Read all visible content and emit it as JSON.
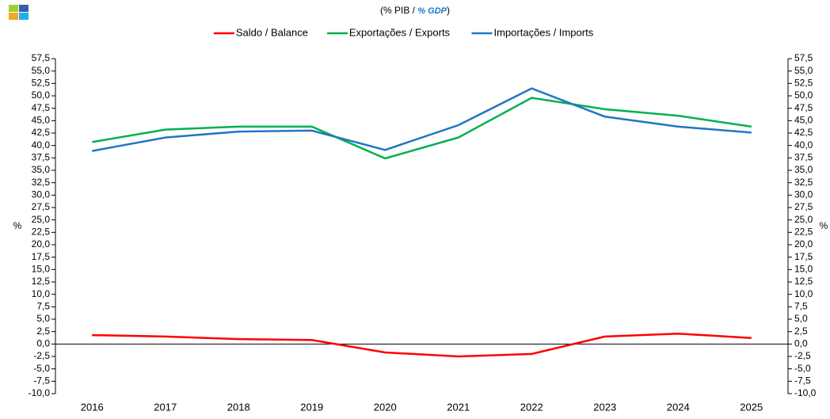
{
  "chart_data": {
    "type": "line",
    "subtitle": [
      "(% PIB / ",
      "% GDP",
      ")"
    ],
    "ylabel": "%",
    "y2label": "%",
    "categories": [
      "2016",
      "2017",
      "2018",
      "2019",
      "2020",
      "2021",
      "2022",
      "2023",
      "2024",
      "2025"
    ],
    "series": [
      {
        "name": "Saldo / Balance",
        "color": "#ff0000",
        "values": [
          1.8,
          1.5,
          1.0,
          0.8,
          -1.7,
          -2.5,
          -2.0,
          1.5,
          2.1,
          1.2
        ]
      },
      {
        "name": "Exportações / Exports",
        "color": "#00b050",
        "values": [
          40.7,
          43.2,
          43.8,
          43.8,
          37.4,
          41.6,
          49.6,
          47.3,
          46.0,
          43.8
        ]
      },
      {
        "name": "Importações / Imports",
        "color": "#1f77c4",
        "values": [
          38.9,
          41.6,
          42.8,
          43.0,
          39.1,
          44.1,
          51.5,
          45.8,
          43.8,
          42.6
        ]
      }
    ],
    "ylim": [
      -10,
      57.5
    ],
    "yticks": [
      {
        "value": -10,
        "label": "-10,0"
      },
      {
        "value": -7.5,
        "label": "-7,5"
      },
      {
        "value": -5,
        "label": "-5,0"
      },
      {
        "value": -2.5,
        "label": "-2,5"
      },
      {
        "value": 0,
        "label": "0,0"
      },
      {
        "value": 2.5,
        "label": "2,5"
      },
      {
        "value": 5,
        "label": "5,0"
      },
      {
        "value": 7.5,
        "label": "7,5"
      },
      {
        "value": 10,
        "label": "10,0"
      },
      {
        "value": 12.5,
        "label": "12,5"
      },
      {
        "value": 15,
        "label": "15,0"
      },
      {
        "value": 17.5,
        "label": "17,5"
      },
      {
        "value": 20,
        "label": "20,0"
      },
      {
        "value": 22.5,
        "label": "22,5"
      },
      {
        "value": 25,
        "label": "25,0"
      },
      {
        "value": 27.5,
        "label": "27,5"
      },
      {
        "value": 30,
        "label": "30,0"
      },
      {
        "value": 32.5,
        "label": "32,5"
      },
      {
        "value": 35,
        "label": "35,0"
      },
      {
        "value": 37.5,
        "label": "37,5"
      },
      {
        "value": 40,
        "label": "40,0"
      },
      {
        "value": 42.5,
        "label": "42,5"
      },
      {
        "value": 45,
        "label": "45,0"
      },
      {
        "value": 47.5,
        "label": "47,5"
      },
      {
        "value": 50,
        "label": "50,0"
      },
      {
        "value": 52.5,
        "label": "52,5"
      },
      {
        "value": 55,
        "label": "55,0"
      },
      {
        "value": 57.5,
        "label": "57,5"
      }
    ],
    "y2lim": [
      -10,
      57.5
    ],
    "y2ticks": [
      {
        "value": -10,
        "label": "-10,0"
      },
      {
        "value": -7.5,
        "label": "-7,5"
      },
      {
        "value": -5,
        "label": "-5,0"
      },
      {
        "value": -2.5,
        "label": "-2,5"
      },
      {
        "value": 0,
        "label": "0,0"
      },
      {
        "value": 2.5,
        "label": "2,5"
      },
      {
        "value": 5,
        "label": "5,0"
      },
      {
        "value": 7.5,
        "label": "7,5"
      },
      {
        "value": 10,
        "label": "10,0"
      },
      {
        "value": 12.5,
        "label": "12,5"
      },
      {
        "value": 15,
        "label": "15,0"
      },
      {
        "value": 17.5,
        "label": "17,5"
      },
      {
        "value": 20,
        "label": "20,0"
      },
      {
        "value": 22.5,
        "label": "22,5"
      },
      {
        "value": 25,
        "label": "25,0"
      },
      {
        "value": 27.5,
        "label": "27,5"
      },
      {
        "value": 30,
        "label": "30,0"
      },
      {
        "value": 32.5,
        "label": "32,5"
      },
      {
        "value": 35,
        "label": "35,0"
      },
      {
        "value": 37.5,
        "label": "37,5"
      },
      {
        "value": 40,
        "label": "40,0"
      },
      {
        "value": 42.5,
        "label": "42,5"
      },
      {
        "value": 45,
        "label": "45,0"
      },
      {
        "value": 47.5,
        "label": "47,5"
      },
      {
        "value": 50,
        "label": "50,0"
      },
      {
        "value": 52.5,
        "label": "52,5"
      },
      {
        "value": 55,
        "label": "55,0"
      },
      {
        "value": 57.5,
        "label": "57,5"
      }
    ],
    "legend": "top",
    "grid": false
  }
}
